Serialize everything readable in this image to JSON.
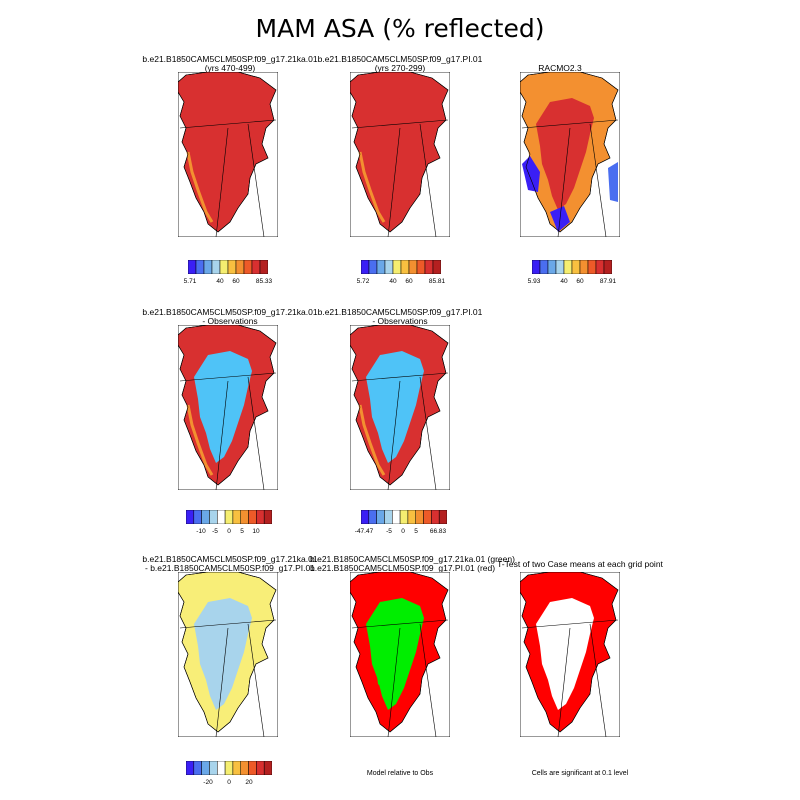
{
  "title": "MAM ASA (% reflected)",
  "chart_data": [
    {
      "type": "heatmap",
      "panel": "case1",
      "title_lines": [
        "b.e21.B1850CAM5CLM50SP.f09_g17.21ka.01",
        "(yrs 470-499)"
      ],
      "theme": "high",
      "colorbar": {
        "labels": [
          "5.71",
          "40",
          "60",
          "85.33"
        ]
      }
    },
    {
      "type": "heatmap",
      "panel": "case2",
      "title_lines": [
        "b.e21.B1850CAM5CLM50SP.f09_g17.PI.01",
        "(yrs 270-299)"
      ],
      "theme": "high",
      "colorbar": {
        "labels": [
          "5.72",
          "40",
          "60",
          "85.81"
        ]
      }
    },
    {
      "type": "heatmap",
      "panel": "obs",
      "title_lines": [
        "RACMO2.3"
      ],
      "theme": "racmo",
      "colorbar": {
        "labels": [
          "5.93",
          "40",
          "60",
          "87.91"
        ]
      }
    },
    {
      "type": "heatmap",
      "panel": "case1-obs",
      "title_lines": [
        "b.e21.B1850CAM5CLM50SP.f09_g17.21ka.01",
        "- Observations"
      ],
      "theme": "diff",
      "colorbar": {
        "labels": [
          "-10",
          "-5",
          "0",
          "5",
          "10"
        ]
      }
    },
    {
      "type": "heatmap",
      "panel": "case2-obs",
      "title_lines": [
        "b.e21.B1850CAM5CLM50SP.f09_g17.PI.01",
        "- Observations"
      ],
      "theme": "diff2",
      "colorbar": {
        "labels": [
          "-47.47",
          "-5",
          "0",
          "5",
          "66.83"
        ]
      }
    },
    {
      "type": "heatmap",
      "panel": "case1-case2",
      "title_lines": [
        "b.e21.B1850CAM5CLM50SP.f09_g17.21ka.01",
        "- b.e21.B1850CAM5CLM50SP.f09_g17.PI.01"
      ],
      "theme": "yellow",
      "colorbar": {
        "labels": [
          "-20",
          "0",
          "20"
        ]
      }
    },
    {
      "type": "heatmap",
      "panel": "model-relative",
      "title_lines": [
        "b.e21.B1850CAM5CLM50SP.f09_g17.21ka.01 (green)",
        "b.e21.B1850CAM5CLM50SP.f09_g17.PI.01 (red)"
      ],
      "theme": "redgreen",
      "caption": "Model relative to Obs"
    },
    {
      "type": "heatmap",
      "panel": "t-test",
      "title_lines": [
        "T-Test of two Case means at each grid point"
      ],
      "theme": "redwhite",
      "caption": "Cells are significant at 0.1 level"
    }
  ],
  "colors": {
    "abs_scale": [
      "#3a1ff5",
      "#4a6ef0",
      "#6aa8e8",
      "#a8d4ec",
      "#f5ee70",
      "#f8c040",
      "#f39030",
      "#ee5a28",
      "#d83030",
      "#b42020"
    ],
    "diff_scale": [
      "#3a1ff5",
      "#4a6ef0",
      "#6aa8e8",
      "#a8d4ec",
      "#ffffff",
      "#f5ee70",
      "#f8c040",
      "#f39030",
      "#ee5a28",
      "#d83030",
      "#b42020"
    ],
    "green": "#00ee00",
    "red": "#ff0000",
    "light_blue": "#4fc3f7",
    "pale_blue": "#a8d4ec",
    "yellow": "#f8ee78"
  }
}
